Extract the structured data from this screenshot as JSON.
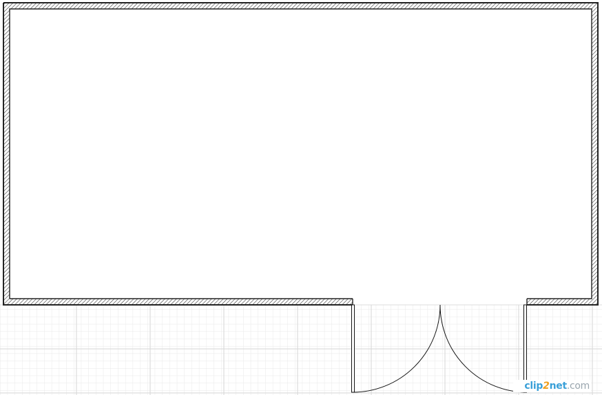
{
  "diagram": {
    "type": "floor-plan",
    "elements": [
      "room-walls",
      "double-door",
      "grid-floor"
    ]
  },
  "colors": {
    "wall_stroke": "#222222",
    "hatch": "#444444",
    "grid_minor": "#e6e6e6",
    "grid_major": "#cfcfcf",
    "door_line": "#111111"
  },
  "watermark": {
    "part1": "clip",
    "part2": "2",
    "part3": "net",
    "part4": ".com"
  }
}
